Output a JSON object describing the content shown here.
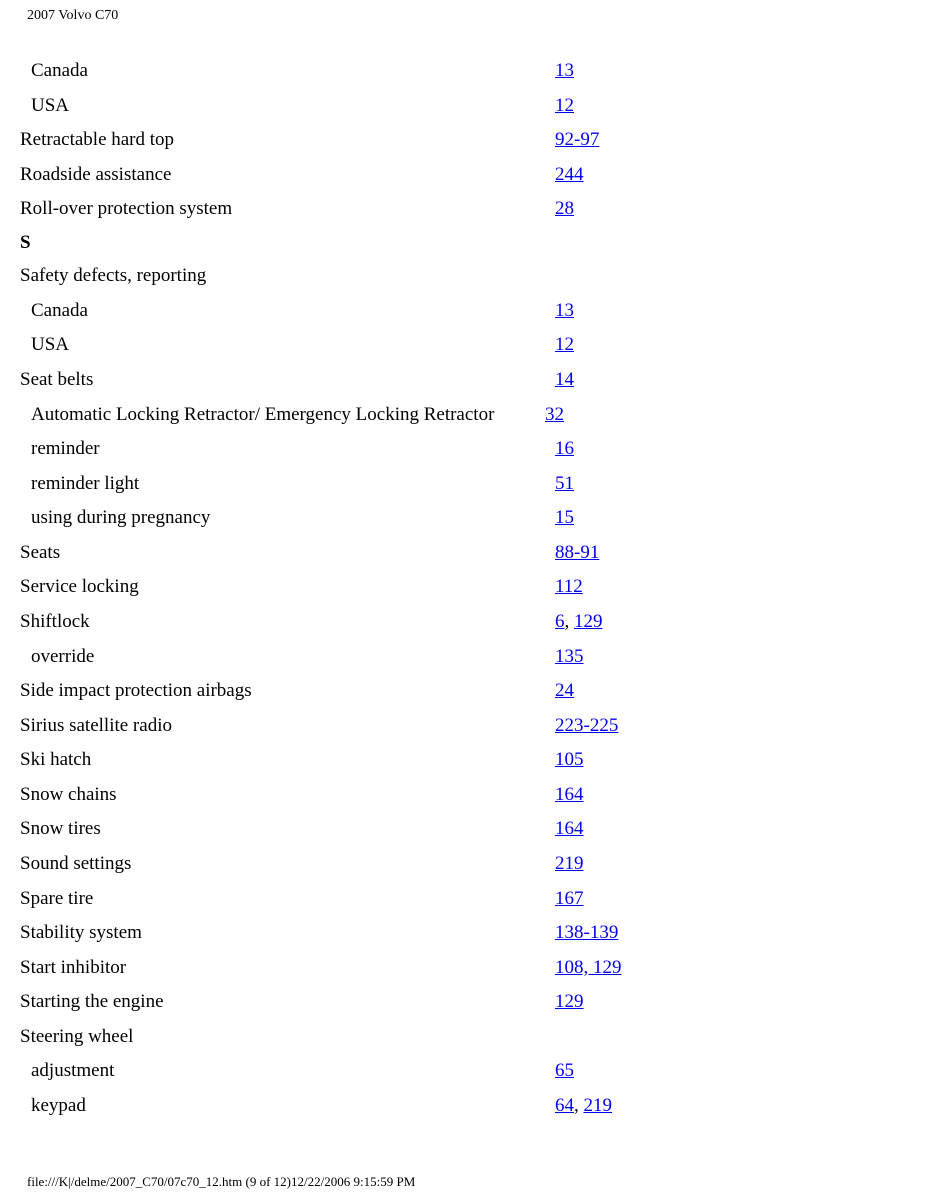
{
  "header_title": "2007 Volvo C70",
  "footer_text": "file:///K|/delme/2007_C70/07c70_12.htm (9 of 12)12/22/2006 9:15:59 PM",
  "rows": [
    {
      "type": "entry",
      "level": 1,
      "term": "Canada",
      "links": [
        {
          "text": "13"
        }
      ]
    },
    {
      "type": "entry",
      "level": 1,
      "term": "USA",
      "links": [
        {
          "text": "12"
        }
      ]
    },
    {
      "type": "entry",
      "level": 0,
      "term": "Retractable hard top",
      "links": [
        {
          "text": "92-97"
        }
      ]
    },
    {
      "type": "entry",
      "level": 0,
      "term": "Roadside assistance",
      "links": [
        {
          "text": "244"
        }
      ]
    },
    {
      "type": "entry",
      "level": 0,
      "term": "Roll-over protection system",
      "links": [
        {
          "text": "28"
        }
      ]
    },
    {
      "type": "section",
      "letter": "S"
    },
    {
      "type": "entry",
      "level": 0,
      "term": "Safety defects, reporting",
      "links": []
    },
    {
      "type": "entry",
      "level": 1,
      "term": "Canada",
      "links": [
        {
          "text": "13"
        }
      ]
    },
    {
      "type": "entry",
      "level": 1,
      "term": "USA",
      "links": [
        {
          "text": "12"
        }
      ]
    },
    {
      "type": "entry",
      "level": 0,
      "term": "Seat belts",
      "links": [
        {
          "text": "14"
        }
      ]
    },
    {
      "type": "entry",
      "level": 1,
      "multiline": true,
      "term": "Automatic Locking Retractor/ Emergency Locking Retractor",
      "links": [
        {
          "text": "32"
        }
      ]
    },
    {
      "type": "entry",
      "level": 1,
      "term": "reminder",
      "links": [
        {
          "text": "16"
        }
      ]
    },
    {
      "type": "entry",
      "level": 1,
      "term": "reminder light",
      "links": [
        {
          "text": "51"
        }
      ]
    },
    {
      "type": "entry",
      "level": 1,
      "term": "using during pregnancy",
      "links": [
        {
          "text": "15"
        }
      ]
    },
    {
      "type": "entry",
      "level": 0,
      "term": "Seats",
      "links": [
        {
          "text": "88-91"
        }
      ]
    },
    {
      "type": "entry",
      "level": 0,
      "term": "Service locking",
      "links": [
        {
          "text": "112"
        }
      ]
    },
    {
      "type": "entry",
      "level": 0,
      "term": "Shiftlock",
      "links": [
        {
          "text": "6"
        },
        {
          "text": "129"
        }
      ]
    },
    {
      "type": "entry",
      "level": 1,
      "term": "override",
      "links": [
        {
          "text": "135"
        }
      ]
    },
    {
      "type": "entry",
      "level": 0,
      "term": "Side impact protection airbags",
      "links": [
        {
          "text": "24"
        }
      ]
    },
    {
      "type": "entry",
      "level": 0,
      "term": "Sirius satellite radio",
      "links": [
        {
          "text": "223-225"
        }
      ]
    },
    {
      "type": "entry",
      "level": 0,
      "term": "Ski hatch",
      "links": [
        {
          "text": "105"
        }
      ]
    },
    {
      "type": "entry",
      "level": 0,
      "term": "Snow chains",
      "links": [
        {
          "text": "164"
        }
      ]
    },
    {
      "type": "entry",
      "level": 0,
      "term": "Snow tires",
      "links": [
        {
          "text": "164"
        }
      ]
    },
    {
      "type": "entry",
      "level": 0,
      "term": "Sound settings",
      "links": [
        {
          "text": "219"
        }
      ]
    },
    {
      "type": "entry",
      "level": 0,
      "term": "Spare tire",
      "links": [
        {
          "text": "167"
        }
      ]
    },
    {
      "type": "entry",
      "level": 0,
      "term": "Stability system",
      "links": [
        {
          "text": "138-139"
        }
      ]
    },
    {
      "type": "entry",
      "level": 0,
      "term": "Start inhibitor",
      "links": [
        {
          "text": "108, 129"
        }
      ]
    },
    {
      "type": "entry",
      "level": 0,
      "term": "Starting the engine",
      "links": [
        {
          "text": "129"
        }
      ]
    },
    {
      "type": "entry",
      "level": 0,
      "term": "Steering wheel",
      "links": []
    },
    {
      "type": "entry",
      "level": 1,
      "term": "adjustment",
      "links": [
        {
          "text": "65"
        }
      ]
    },
    {
      "type": "entry",
      "level": 1,
      "term": "keypad",
      "links": [
        {
          "text": "64"
        },
        {
          "text": "219"
        }
      ]
    }
  ]
}
